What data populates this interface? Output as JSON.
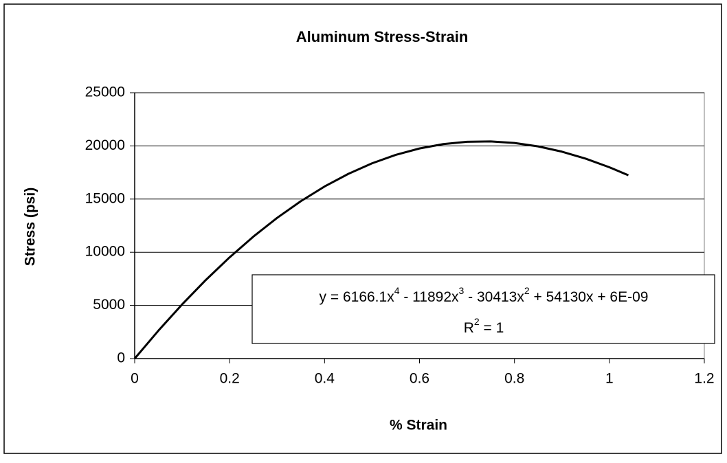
{
  "chart_data": {
    "type": "line",
    "title": "Aluminum Stress-Strain",
    "xlabel": "% Strain",
    "ylabel": "Stress (psi)",
    "x": [
      0,
      0.05,
      0.1,
      0.15,
      0.2,
      0.25,
      0.3,
      0.35,
      0.4,
      0.45,
      0.5,
      0.55,
      0.6,
      0.65,
      0.7,
      0.75,
      0.8,
      0.85,
      0.9,
      0.95,
      1.0,
      1.04
    ],
    "series": [
      {
        "color": "#000000",
        "values": [
          0,
          2629,
          5098,
          7398,
          9524,
          11470,
          13231,
          14803,
          16183,
          17369,
          18361,
          19157,
          19760,
          20170,
          20390,
          20424,
          20277,
          19953,
          19459,
          18802,
          17991,
          17237
        ]
      }
    ],
    "xlim": [
      0,
      1.2
    ],
    "xticks": [
      0,
      0.2,
      0.4,
      0.6,
      0.8,
      1,
      1.2
    ],
    "ylim": [
      0,
      25000
    ],
    "yticks": [
      0,
      5000,
      10000,
      15000,
      20000,
      25000
    ],
    "grid": true,
    "equation": [
      "y = 6166.1x",
      "4",
      " - 11892x",
      "3",
      " - 30413x",
      "2",
      " + 54130x + 6E-09"
    ],
    "r_squared": [
      "R",
      "2",
      " = 1"
    ]
  }
}
